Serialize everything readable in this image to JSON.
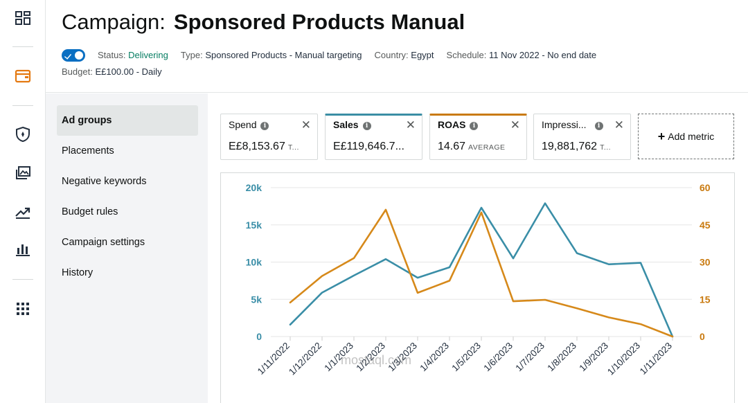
{
  "header": {
    "title_prefix": "Campaign:",
    "title_name": "Sponsored Products Manual",
    "status_key": "Status:",
    "status_value": "Delivering",
    "type_key": "Type:",
    "type_value": "Sponsored Products - Manual targeting",
    "country_key": "Country:",
    "country_value": "Egypt",
    "schedule_key": "Schedule:",
    "schedule_value": "11 Nov 2022 - No end date",
    "budget_key": "Budget:",
    "budget_value": "E£100.00 - Daily"
  },
  "subnav": {
    "items": [
      "Ad groups",
      "Placements",
      "Negative keywords",
      "Budget rules",
      "Campaign settings",
      "History"
    ]
  },
  "metrics": [
    {
      "label": "Spend",
      "value": "E£8,153.67",
      "suffix": "T...",
      "accent": ""
    },
    {
      "label": "Sales",
      "value": "E£119,646.7...",
      "suffix": "",
      "accent": "#3b8ea5"
    },
    {
      "label": "ROAS",
      "value": "14.67",
      "suffix": "AVERAGE",
      "accent": "#c97a0f"
    },
    {
      "label": "Impressi...",
      "value": "19,881,762",
      "suffix": "T...",
      "accent": ""
    }
  ],
  "add_metric_label": "Add metric",
  "watermark": "mostaql.com",
  "colors": {
    "sales": "#3a8ea7",
    "roas": "#d6891a",
    "left_axis": "#3a8ea7",
    "right_axis": "#c97a0f"
  },
  "chart_data": {
    "type": "line",
    "categories": [
      "1/11/2022",
      "1/12/2022",
      "1/1/2023",
      "1/2/2023",
      "1/3/2023",
      "1/4/2023",
      "1/5/2023",
      "1/6/2023",
      "1/7/2023",
      "1/8/2023",
      "1/9/2023",
      "1/10/2023",
      "1/11/2023"
    ],
    "series": [
      {
        "name": "Sales",
        "axis": "left",
        "values": [
          1600,
          5900,
          8200,
          10400,
          7900,
          9300,
          17300,
          10500,
          17900,
          11200,
          9700,
          9900,
          0
        ]
      },
      {
        "name": "ROAS",
        "axis": "right",
        "values": [
          13.7,
          24.4,
          31.6,
          51.1,
          17.6,
          22.5,
          50.0,
          14.2,
          14.8,
          11.4,
          7.7,
          5.0,
          0
        ]
      }
    ],
    "left_ylim": [
      0,
      20000
    ],
    "left_ticks": [
      "0",
      "5k",
      "10k",
      "15k",
      "20k"
    ],
    "right_ylim": [
      0,
      60
    ],
    "right_ticks": [
      "0",
      "15",
      "30",
      "45",
      "60"
    ],
    "grid": true
  }
}
